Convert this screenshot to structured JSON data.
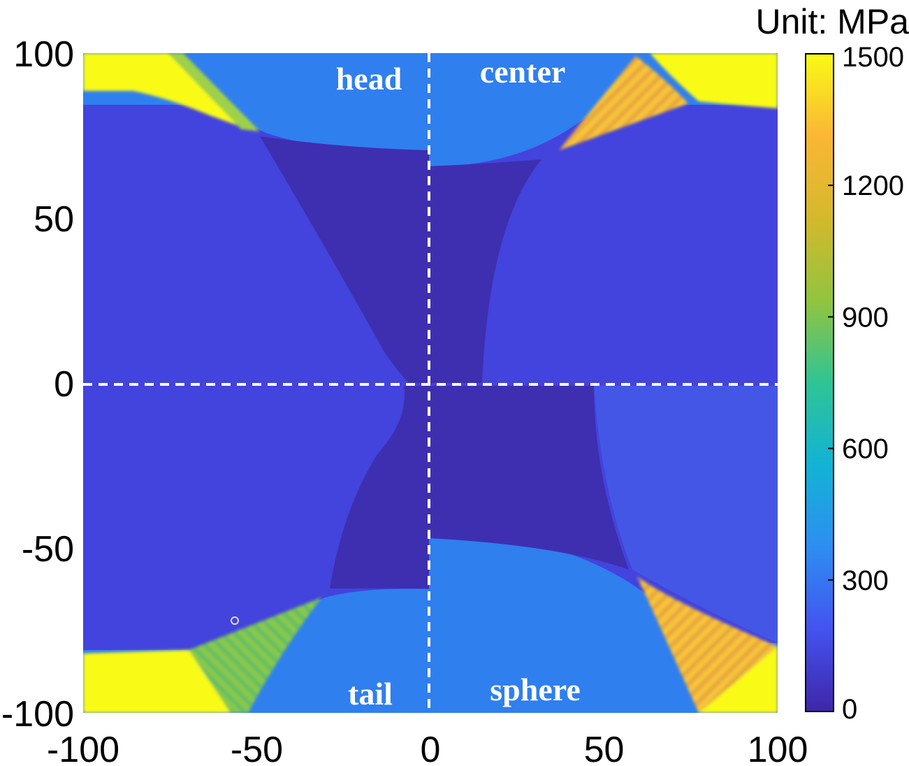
{
  "chart_data": {
    "type": "heatmap",
    "title": "",
    "xlabel": "",
    "ylabel": "",
    "xlim": [
      -100,
      100
    ],
    "ylim": [
      -100,
      100
    ],
    "x_ticks": [
      -100,
      -50,
      0,
      50,
      100
    ],
    "y_ticks": [
      100,
      50,
      0,
      -50,
      -100
    ],
    "x_tick_labels": [
      "-100",
      "-50",
      "0",
      "50",
      "100"
    ],
    "y_tick_labels": [
      "100",
      "50",
      "0",
      "-50",
      "-100"
    ],
    "colorbar": {
      "unit_label": "Unit: MPa",
      "min": 0,
      "max": 1500,
      "ticks": [
        0,
        300,
        600,
        900,
        1200,
        1500
      ],
      "tick_labels": [
        "0",
        "300",
        "600",
        "900",
        "1200",
        "1500"
      ],
      "colormap": [
        "#3e26a8",
        "#4353f0",
        "#2d8ef2",
        "#12b3d5",
        "#2fc495",
        "#92c43e",
        "#d4b92c",
        "#fbb635",
        "#f9fb14"
      ]
    },
    "quadrants": [
      {
        "label": "head",
        "position": "top-left"
      },
      {
        "label": "center",
        "position": "top-right"
      },
      {
        "label": "tail",
        "position": "bottom-left"
      },
      {
        "label": "sphere",
        "position": "bottom-right"
      }
    ],
    "divider_lines": {
      "x": 0,
      "y": 0,
      "style": "dashed",
      "color": "#ffffff"
    },
    "grid": false
  },
  "colors": {
    "low": "#3e2fb0",
    "background_field": "#4343dd",
    "mid": "#2f7fef",
    "high": "#f9fb14",
    "orange": "#f6b63a",
    "green": "#7cc45a",
    "divider": "#ffffff"
  }
}
